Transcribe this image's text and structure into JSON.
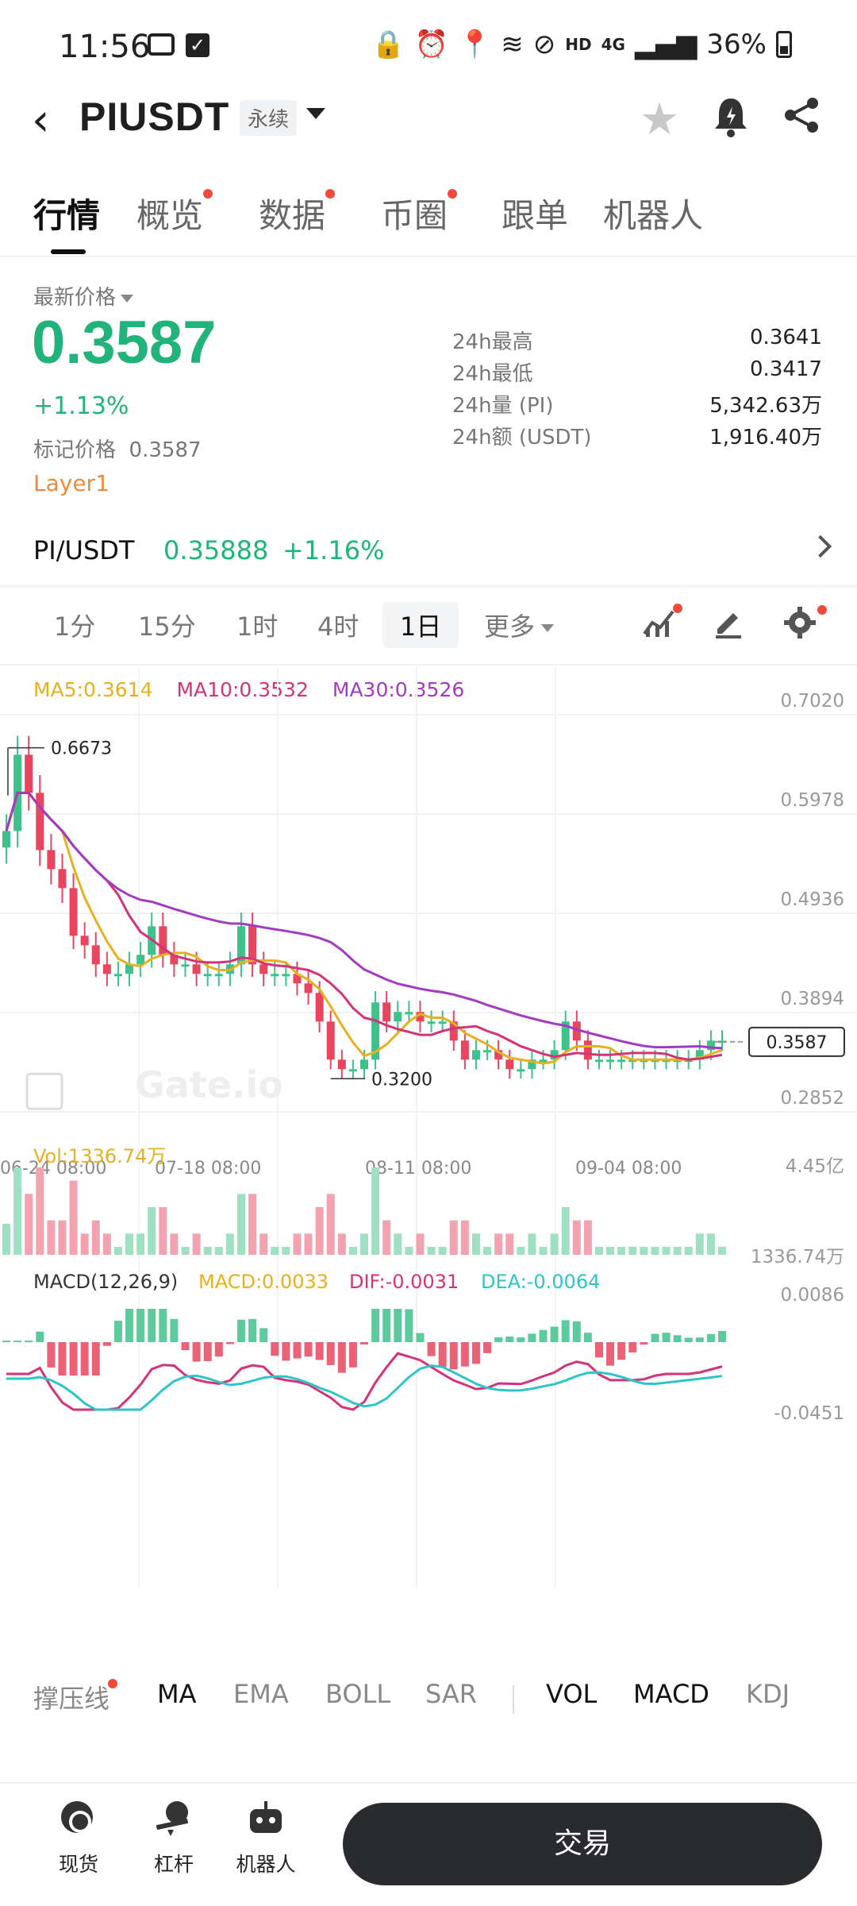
{
  "status_bar": {
    "time": "11:56",
    "signal_text": "HD",
    "net_text": "4G",
    "battery": "36%"
  },
  "header": {
    "title": "PIUSDT",
    "badge": "永续",
    "icons": [
      "back-icon",
      "caret-down-icon",
      "star-icon",
      "bell-icon",
      "share-icon"
    ]
  },
  "tabs": [
    {
      "label": "行情",
      "active": true,
      "dot": false
    },
    {
      "label": "概览",
      "active": false,
      "dot": true
    },
    {
      "label": "数据",
      "active": false,
      "dot": true
    },
    {
      "label": "币圈",
      "active": false,
      "dot": true
    },
    {
      "label": "跟单",
      "active": false,
      "dot": false
    },
    {
      "label": "机器人",
      "active": false,
      "dot": false
    }
  ],
  "price": {
    "latest_label": "最新价格",
    "last": "0.3587",
    "change": "+1.13%",
    "mark_label": "标记价格",
    "mark_value": "0.3587",
    "tag": "Layer1",
    "stats": [
      {
        "k": "24h最高",
        "v": "0.3641"
      },
      {
        "k": "24h最低",
        "v": "0.3417"
      },
      {
        "k": "24h量 (PI)",
        "v": "5,342.63万"
      },
      {
        "k": "24h额 (USDT)",
        "v": "1,916.40万"
      }
    ]
  },
  "spot": {
    "pair": "PI/USDT",
    "price": "0.35888",
    "change": "+1.16%"
  },
  "intervals": {
    "items": [
      "1分",
      "15分",
      "1时",
      "4时",
      "1日"
    ],
    "active": "1日",
    "more": "更多"
  },
  "chart_data": {
    "type": "candlestick",
    "ma_legend": [
      {
        "label": "MA5:0.3614",
        "color": "#e8b020"
      },
      {
        "label": "MA10:0.3532",
        "color": "#d4337a"
      },
      {
        "label": "MA30:0.3526",
        "color": "#a43ac0"
      }
    ],
    "y_ticks": [
      "0.7020",
      "0.5978",
      "0.4936",
      "0.3894",
      "0.2852"
    ],
    "ylim": [
      0.2852,
      0.702
    ],
    "x_ticks": [
      "06-24 08:00",
      "07-18 08:00",
      "08-11 08:00",
      "09-04 08:00"
    ],
    "high_label": "0.6673",
    "low_label": "0.3200",
    "current_price": "0.3587",
    "watermark": "Gate.io",
    "up_color": "#3fc18c",
    "down_color": "#e8455e",
    "closes": [
      0.58,
      0.66,
      0.62,
      0.56,
      0.54,
      0.52,
      0.47,
      0.46,
      0.44,
      0.43,
      0.43,
      0.44,
      0.45,
      0.48,
      0.45,
      0.44,
      0.44,
      0.43,
      0.43,
      0.43,
      0.44,
      0.48,
      0.44,
      0.43,
      0.43,
      0.43,
      0.42,
      0.41,
      0.38,
      0.34,
      0.33,
      0.33,
      0.34,
      0.4,
      0.38,
      0.39,
      0.39,
      0.38,
      0.38,
      0.38,
      0.36,
      0.34,
      0.35,
      0.35,
      0.34,
      0.33,
      0.33,
      0.34,
      0.34,
      0.35,
      0.38,
      0.36,
      0.34,
      0.34,
      0.34,
      0.34,
      0.34,
      0.34,
      0.34,
      0.34,
      0.34,
      0.34,
      0.35,
      0.36,
      0.36
    ],
    "volume": {
      "label": "Vol:1336.74万",
      "ticks": [
        "4.45亿",
        "1336.74万"
      ]
    },
    "macd": {
      "label": "MACD(12,26,9)",
      "macd": "MACD:0.0033",
      "dif": "DIF:-0.0031",
      "dea": "DEA:-0.0064",
      "ticks": [
        "0.0086",
        "-0.0451"
      ]
    }
  },
  "indicators": [
    {
      "label": "撑压线",
      "on": false,
      "dot": true
    },
    {
      "label": "MA",
      "on": true,
      "dot": false
    },
    {
      "label": "EMA",
      "on": false,
      "dot": false
    },
    {
      "label": "BOLL",
      "on": false,
      "dot": false
    },
    {
      "label": "SAR",
      "on": false,
      "dot": false
    },
    {
      "label": "VOL",
      "on": true,
      "dot": false
    },
    {
      "label": "MACD",
      "on": true,
      "dot": false
    },
    {
      "label": "KDJ",
      "on": false,
      "dot": false
    }
  ],
  "bottom_nav": {
    "items": [
      "现货",
      "杠杆",
      "机器人"
    ],
    "trade": "交易"
  }
}
